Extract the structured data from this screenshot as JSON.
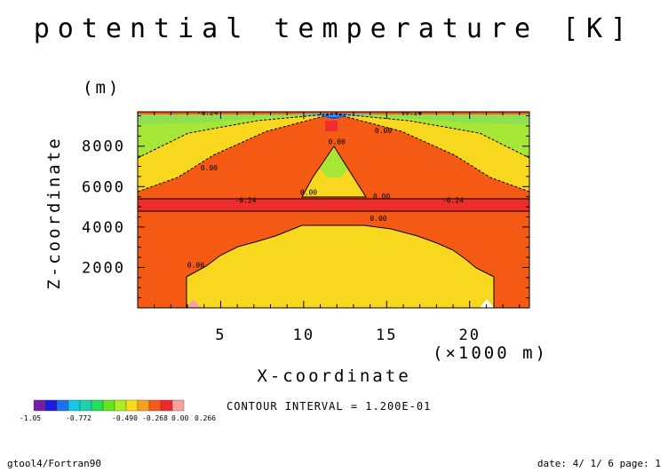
{
  "chart_data": {
    "type": "heatmap",
    "title": "potential temperature [K]",
    "xlabel": "X-coordinate",
    "x_unit": "(×1000 m)",
    "ylabel": "Z-coordinate",
    "y_unit": "(m)",
    "xlim": [
      0,
      23.6
    ],
    "ylim": [
      0,
      9700
    ],
    "x_ticks": [
      5,
      10,
      15,
      20
    ],
    "y_ticks": [
      2000,
      4000,
      6000,
      8000
    ],
    "contour_interval": "CONTOUR INTERVAL = 1.200E-01",
    "contour_labels": [
      {
        "text": "-0.24",
        "x": 4.2,
        "y": 9550
      },
      {
        "text": "-0.24",
        "x": 16.5,
        "y": 9550
      },
      {
        "text": "0.00",
        "x": 14.8,
        "y": 8650
      },
      {
        "text": "0.00",
        "x": 12.0,
        "y": 8100
      },
      {
        "text": "0.00",
        "x": 4.3,
        "y": 6800
      },
      {
        "text": "0.00",
        "x": 10.3,
        "y": 5600
      },
      {
        "text": "0.00",
        "x": 14.7,
        "y": 5400
      },
      {
        "text": "-0.24",
        "x": 6.5,
        "y": 5200
      },
      {
        "text": "-0.24",
        "x": 19.0,
        "y": 5200
      },
      {
        "text": "0.00",
        "x": 14.5,
        "y": 4300
      },
      {
        "text": "0.00",
        "x": 3.5,
        "y": 2000
      }
    ],
    "colorbar": {
      "colors": [
        "#7a1aa8",
        "#1a1ae0",
        "#1a74f0",
        "#12c8e8",
        "#1ad2aa",
        "#1ee05a",
        "#64e61e",
        "#aaf01e",
        "#f8dc1a",
        "#f8a01a",
        "#f85a1a",
        "#f02828",
        "#f8a0a0"
      ],
      "labels": [
        "-1.05",
        "-0.772",
        "-0.490",
        "-0.268",
        "0.00",
        "0.266"
      ]
    },
    "level_colors": {
      "green": "#a6e636",
      "lightgreen": "#8ee052",
      "yellow": "#f8d81e",
      "orange": "#f8a018",
      "redorange": "#f45a14",
      "red": "#ee2d2d",
      "pink": "#f8a0a0",
      "blue": "#1a3cf0",
      "cyan": "#40c8f0"
    }
  },
  "footer": {
    "left": "gtool4/Fortran90",
    "right": "date: 4/ 1/ 6 page: 1"
  }
}
